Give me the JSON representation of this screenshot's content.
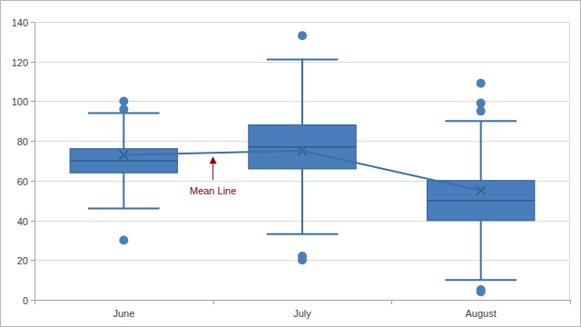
{
  "chart_data": {
    "type": "box",
    "categories": [
      "June",
      "July",
      "August"
    ],
    "values": [
      {
        "min": 46,
        "q1": 64,
        "median": 70,
        "q3": 76,
        "max": 94,
        "mean": 73,
        "outliers": [
          100,
          96,
          30
        ]
      },
      {
        "min": 33,
        "q1": 66,
        "median": 77,
        "q3": 88,
        "max": 121,
        "mean": 75,
        "outliers": [
          133,
          22,
          20
        ]
      },
      {
        "min": 10,
        "q1": 40,
        "median": 50,
        "q3": 60,
        "max": 90,
        "mean": 55,
        "outliers": [
          109,
          99,
          95,
          5,
          4
        ]
      }
    ],
    "color": "#4a7ebb",
    "annotations": [
      "Mean Line"
    ],
    "ylim": [
      0,
      140
    ],
    "yticks": [
      0,
      20,
      40,
      60,
      80,
      100,
      120,
      140
    ],
    "grid": true
  }
}
